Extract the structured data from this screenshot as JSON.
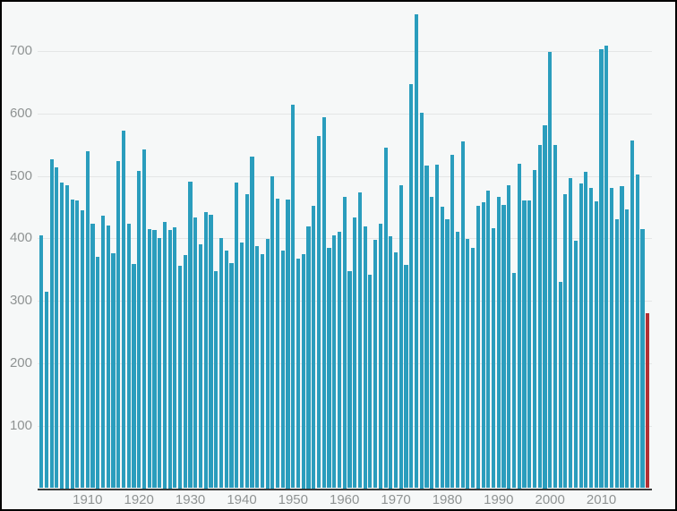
{
  "chart": {
    "background_color": "#f6f8f8",
    "bar_color": "#2a9dbd",
    "highlight_color": "#b23034",
    "grid_color": "#e4e6e6",
    "axis_line_color": "#3a3a3a",
    "tick_label_color": "#8f9393"
  },
  "chart_data": {
    "type": "bar",
    "title": "",
    "xlabel": "",
    "ylabel": "",
    "legend": "none",
    "grid": "horizontal",
    "ylim": [
      0,
      775
    ],
    "yticks": [
      100,
      200,
      300,
      400,
      500,
      600,
      700
    ],
    "xticks": [
      1910,
      1920,
      1930,
      1940,
      1950,
      1960,
      1970,
      1980,
      1990,
      2000,
      2010
    ],
    "highlight_year": 2019,
    "x": [
      1901,
      1902,
      1903,
      1904,
      1905,
      1906,
      1907,
      1908,
      1909,
      1910,
      1911,
      1912,
      1913,
      1914,
      1915,
      1916,
      1917,
      1918,
      1919,
      1920,
      1921,
      1922,
      1923,
      1924,
      1925,
      1926,
      1927,
      1928,
      1929,
      1930,
      1931,
      1932,
      1933,
      1934,
      1935,
      1936,
      1937,
      1938,
      1939,
      1940,
      1941,
      1942,
      1943,
      1944,
      1945,
      1946,
      1947,
      1948,
      1949,
      1950,
      1951,
      1952,
      1953,
      1954,
      1955,
      1956,
      1957,
      1958,
      1959,
      1960,
      1961,
      1962,
      1963,
      1964,
      1965,
      1966,
      1967,
      1968,
      1969,
      1970,
      1971,
      1972,
      1973,
      1974,
      1975,
      1976,
      1977,
      1978,
      1979,
      1980,
      1981,
      1982,
      1983,
      1984,
      1985,
      1986,
      1987,
      1988,
      1989,
      1990,
      1991,
      1992,
      1993,
      1994,
      1995,
      1996,
      1997,
      1998,
      1999,
      2000,
      2001,
      2002,
      2003,
      2004,
      2005,
      2006,
      2007,
      2008,
      2009,
      2010,
      2011,
      2012,
      2013,
      2014,
      2015,
      2016,
      2017,
      2018,
      2019
    ],
    "values": [
      405,
      315,
      527,
      513,
      490,
      485,
      462,
      460,
      445,
      540,
      423,
      371,
      436,
      420,
      376,
      524,
      572,
      423,
      359,
      508,
      543,
      415,
      413,
      401,
      427,
      414,
      417,
      356,
      373,
      491,
      433,
      390,
      442,
      438,
      348,
      400,
      381,
      360,
      489,
      393,
      471,
      531,
      387,
      374,
      399,
      500,
      464,
      381,
      462,
      614,
      368,
      375,
      419,
      452,
      564,
      594,
      385,
      405,
      411,
      467,
      347,
      433,
      473,
      419,
      342,
      398,
      424,
      545,
      404,
      378,
      485,
      357,
      647,
      759,
      601,
      516,
      467,
      518,
      451,
      430,
      534,
      411,
      555,
      399,
      385,
      452,
      458,
      477,
      416,
      466,
      454,
      485,
      344,
      520,
      461,
      460,
      509,
      550,
      581,
      698,
      550,
      330,
      471,
      496,
      396,
      488,
      507,
      481,
      459,
      703,
      708,
      481,
      430,
      483,
      446,
      557,
      502,
      415,
      280
    ]
  }
}
